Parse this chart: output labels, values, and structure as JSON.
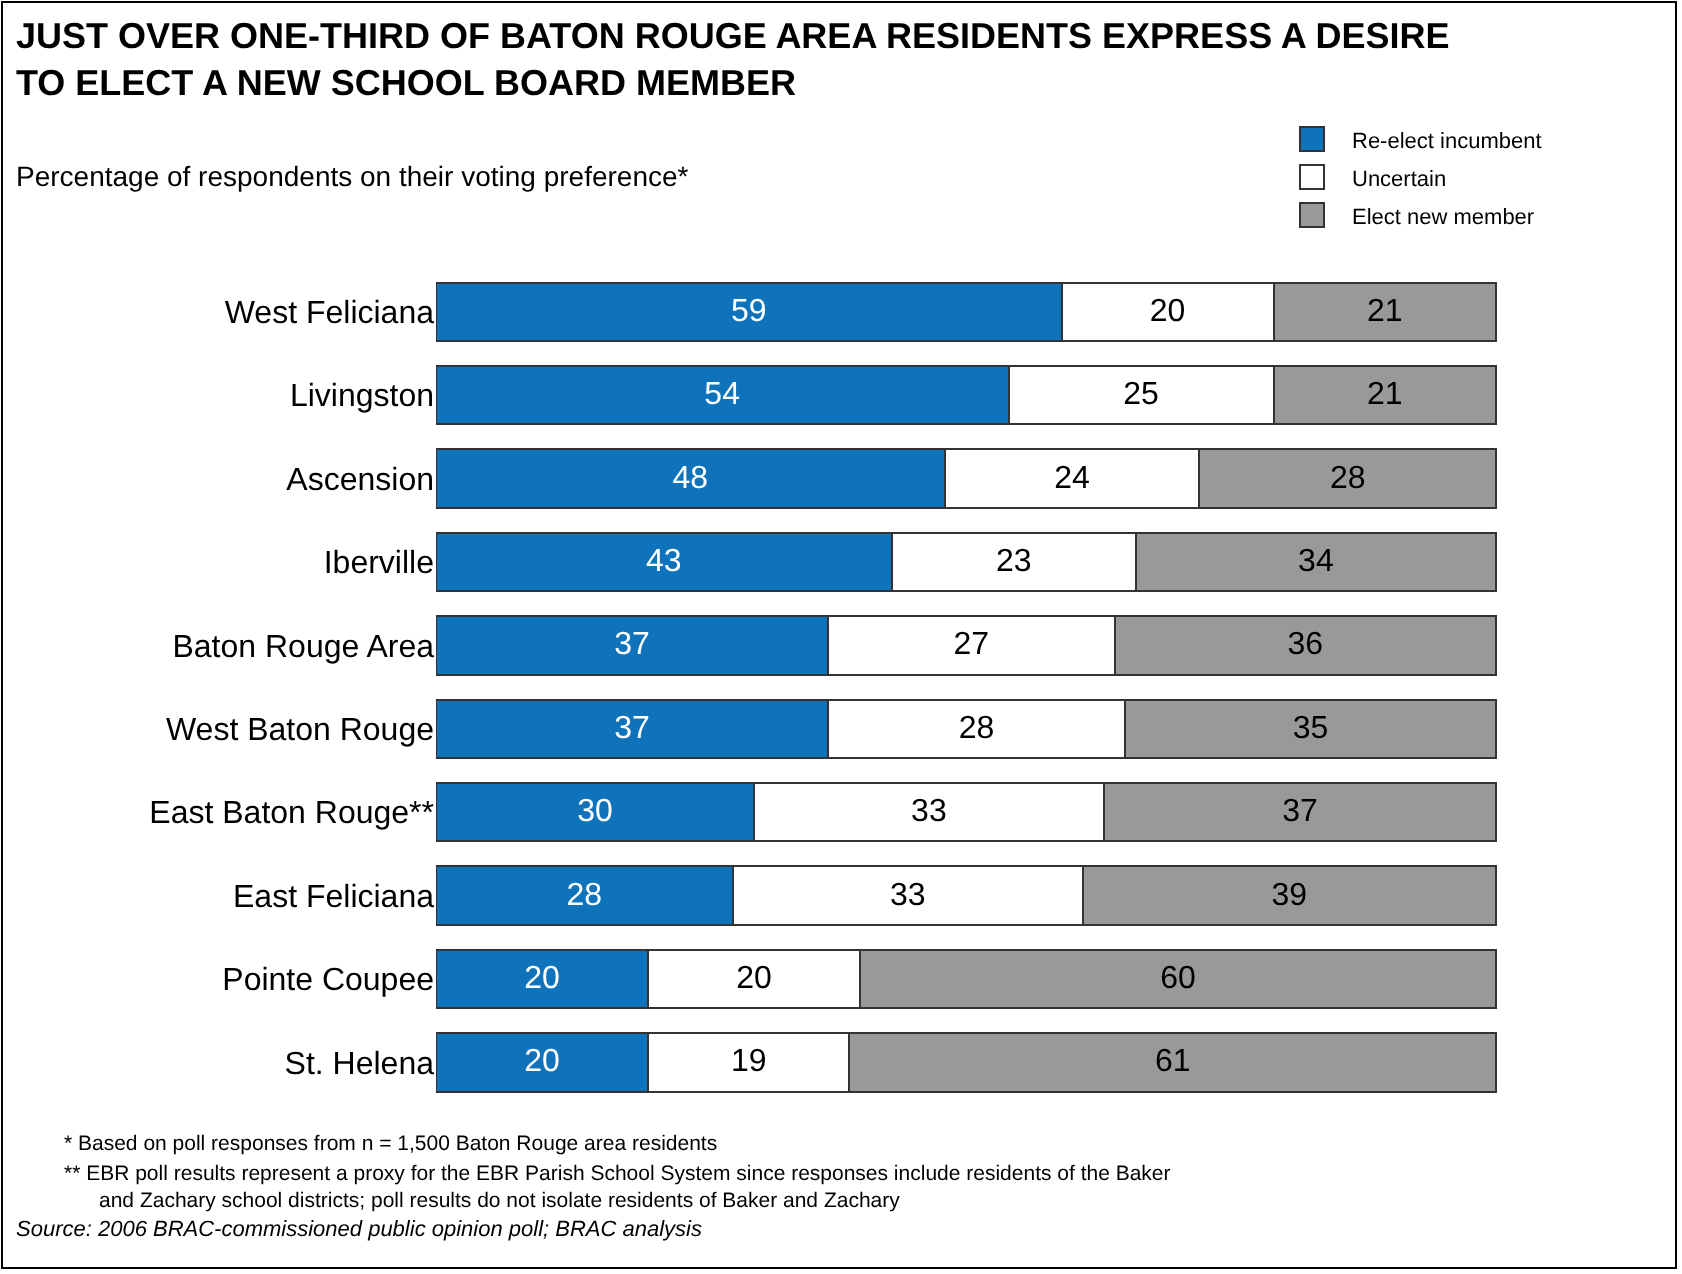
{
  "chart_data": {
    "type": "bar",
    "orientation": "horizontal",
    "stacked": true,
    "data_labels": true,
    "legend": "top right",
    "title": "JUST OVER ONE-THIRD OF BATON ROUGE AREA RESIDENTS EXPRESS A DESIRE TO ELECT A NEW SCHOOL BOARD MEMBER",
    "subtitle": "Percentage of respondents on their voting preference*",
    "categories": [
      "West Feliciana",
      "Livingston",
      "Ascension",
      "Iberville",
      "Baton Rouge Area",
      "West Baton Rouge",
      "East Baton Rouge**",
      "East Feliciana",
      "Pointe Coupee",
      "St. Helena"
    ],
    "series": [
      {
        "name": "Re-elect incumbent",
        "color": "#0f73bc",
        "values": [
          59,
          54,
          48,
          43,
          37,
          37,
          30,
          28,
          20,
          20
        ]
      },
      {
        "name": "Uncertain",
        "color": "#ffffff",
        "values": [
          20,
          25,
          24,
          23,
          27,
          28,
          33,
          33,
          20,
          19
        ]
      },
      {
        "name": "Elect new member",
        "color": "#999999",
        "values": [
          21,
          21,
          28,
          34,
          36,
          35,
          37,
          39,
          60,
          61
        ]
      }
    ],
    "annotations": [
      "* Based on poll responses from n = 1,500 Baton Rouge area residents",
      "** EBR poll results represent a proxy for the EBR Parish School System since responses include residents of the Baker and Zachary school districts; poll results do not isolate residents of Baker and Zachary",
      "Source: 2006 BRAC-commissioned public opinion poll; BRAC analysis"
    ]
  }
}
